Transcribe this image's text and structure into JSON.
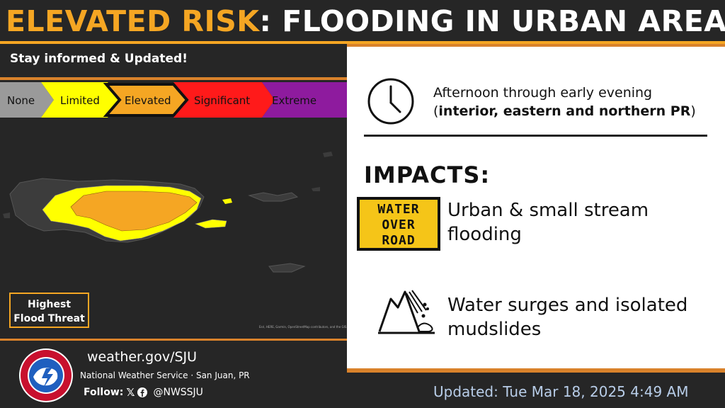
{
  "header": {
    "title_risk": "ELEVATED RISK",
    "title_rest": ": FLOODING IN URBAN AREAS",
    "subheading": "Stay informed & Updated!"
  },
  "risk_scale": {
    "levels": [
      {
        "label": "None",
        "color": "#9a9a9a"
      },
      {
        "label": "Limited",
        "color": "#ffff00"
      },
      {
        "label": "Elevated",
        "color": "#f5a623"
      },
      {
        "label": "Significant",
        "color": "#ff1a1a"
      },
      {
        "label": "Extreme",
        "color": "#8e1b9e"
      }
    ],
    "highlighted": "Elevated"
  },
  "map": {
    "legend_line1": "Highest",
    "legend_line2": "Flood Threat",
    "credit": "Esri, HERE, Garmin, OpenStreetMap contributors, and the GIS user community"
  },
  "timing": {
    "line1": "Afternoon through early evening",
    "open_paren": "(",
    "line2_bold": "interior, eastern and northern PR",
    "close_paren": ")",
    "icon": "clock-icon"
  },
  "impacts": {
    "heading": "IMPACTS:",
    "sign_line1": "WATER",
    "sign_line2": "OVER",
    "sign_line3": "ROAD",
    "item1": "Urban & small stream flooding",
    "item2": "Water surges and isolated mudslides",
    "item2_icon": "mudslide-icon"
  },
  "footer": {
    "url": "weather.gov/SJU",
    "office": "National Weather Service · San Juan, PR",
    "follow_label": "Follow:",
    "handle": "@NWSSJU",
    "updated": "Updated: Tue Mar 18, 2025 4:49 AM"
  },
  "colors": {
    "accent": "#f5a623",
    "panel": "#ffffff",
    "background": "#262626",
    "limited": "#ffff00",
    "elevated": "#f5a623"
  }
}
